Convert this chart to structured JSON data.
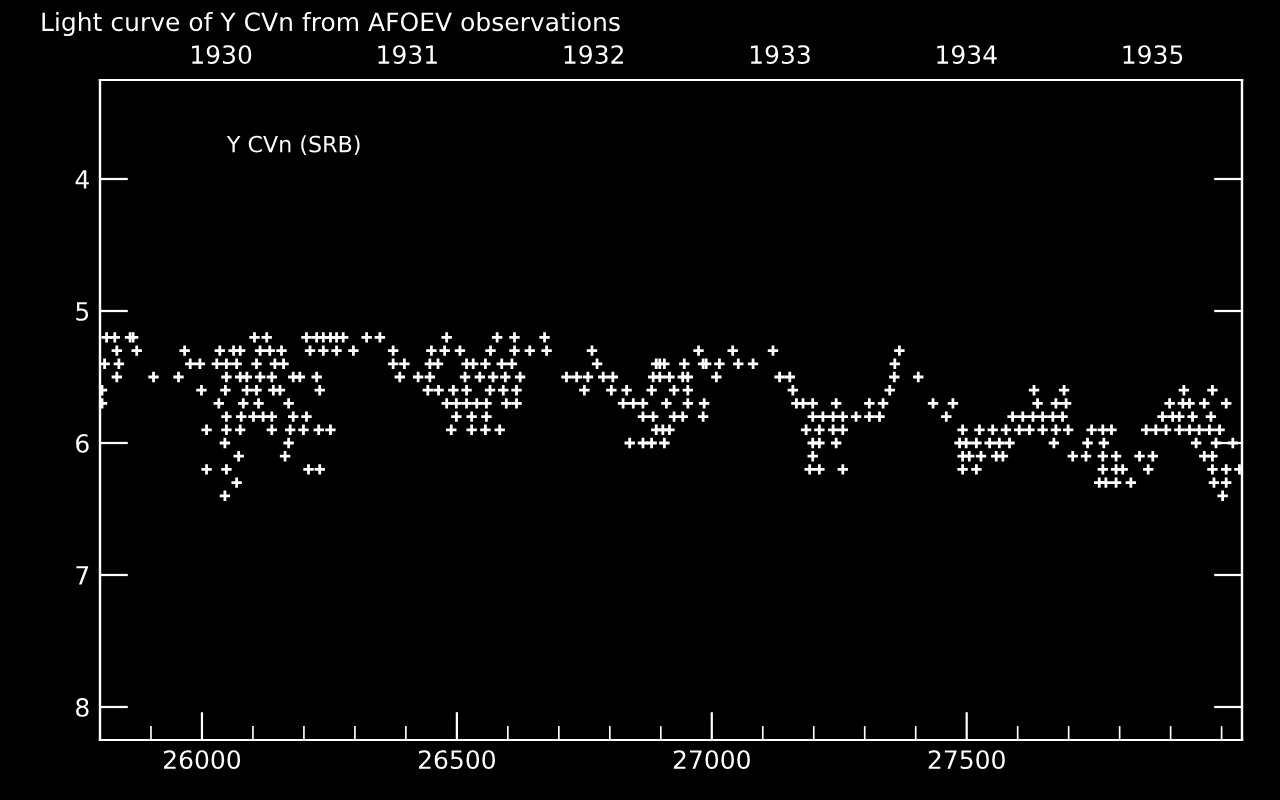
{
  "chart_data": {
    "type": "scatter",
    "title": "Light curve of Y CVn from AFOEV observations",
    "annotations": [
      "Y CVn (SRB)"
    ],
    "marker": "cross",
    "grid": false,
    "xlim": [
      25800,
      28040
    ],
    "ylim": [
      8.25,
      3.25
    ],
    "xticks": [
      {
        "value": 25900,
        "label": null
      },
      26000,
      {
        "value": 26100,
        "label": null
      },
      {
        "value": 26200,
        "label": null
      },
      {
        "value": 26300,
        "label": null
      },
      {
        "value": 26400,
        "label": null
      },
      26500,
      {
        "value": 26600,
        "label": null
      },
      {
        "value": 26700,
        "label": null
      },
      {
        "value": 26800,
        "label": null
      },
      {
        "value": 26900,
        "label": null
      },
      27000,
      {
        "value": 27100,
        "label": null
      },
      {
        "value": 27200,
        "label": null
      },
      {
        "value": 27300,
        "label": null
      },
      {
        "value": 27400,
        "label": null
      },
      27500,
      {
        "value": 27600,
        "label": null
      },
      {
        "value": 27700,
        "label": null
      },
      {
        "value": 27800,
        "label": null
      },
      {
        "value": 27900,
        "label": null
      },
      {
        "value": 28000,
        "label": null
      }
    ],
    "yticks": [
      4,
      5,
      6,
      7,
      8
    ],
    "x2lim": [
      1929.35,
      1935.48
    ],
    "x2ticks": [
      1930,
      1931,
      1932,
      1933,
      1934,
      1935
    ],
    "series": [
      {
        "color": "#ffffff",
        "x": [
          25813,
          25829,
          25859,
          25865,
          26103,
          26127,
          26205,
          26225,
          26238,
          26252,
          26264,
          26277,
          26323,
          26349,
          26480,
          26579,
          26613,
          26672,
          25833,
          25872,
          25966,
          26035,
          26062,
          26075,
          26114,
          26133,
          26156,
          26212,
          26238,
          26264,
          26297,
          26375,
          26450,
          26476,
          26506,
          26566,
          26613,
          26643,
          26676,
          26765,
          25809,
          25837,
          25977,
          25996,
          26029,
          26048,
          26068,
          26107,
          26143,
          26160,
          26375,
          26397,
          26447,
          26463,
          26519,
          26532,
          26556,
          26588,
          26608,
          26775,
          26891,
          25833,
          25905,
          25954,
          26048,
          26075,
          26088,
          26114,
          26137,
          26179,
          26192,
          26225,
          26388,
          26424,
          26447,
          26516,
          26545,
          26571,
          26595,
          26624,
          26715,
          26735,
          26757,
          26787,
          26806,
          26885,
          25804,
          25999,
          26046,
          26088,
          26107,
          26140,
          26153,
          26231,
          26443,
          26464,
          26493,
          26519,
          26565,
          26591,
          26617,
          26750,
          26803,
          26833,
          26882,
          25804,
          26033,
          26081,
          26111,
          26170,
          26480,
          26499,
          26519,
          26539,
          26558,
          26597,
          26617,
          26826,
          26846,
          26865,
          26048,
          26077,
          26101,
          26120,
          26137,
          26179,
          26205,
          26499,
          26529,
          26558,
          26865,
          26885,
          26009,
          26048,
          26075,
          26137,
          26173,
          26199,
          26229,
          26252,
          26489,
          26529,
          26556,
          26584,
          26045,
          26170,
          26839,
          26865,
          26882,
          26072,
          26163,
          26009,
          26048,
          26209,
          26231,
          26068,
          26045,
          26974,
          27041,
          27120,
          27368,
          26898,
          26907,
          26946,
          26983,
          26989,
          27015,
          27052,
          27081,
          27359,
          26898,
          26917,
          26943,
          26953,
          27009,
          27133,
          27153,
          27358,
          27405,
          26926,
          26953,
          27159,
          27349,
          27632,
          27691,
          27926,
          27982,
          26911,
          26953,
          26985,
          27166,
          27179,
          27198,
          27244,
          27309,
          27336,
          27434,
          27473,
          27639,
          27675,
          27695,
          27898,
          27924,
          27937,
          27966,
          28009,
          26926,
          26943,
          26983,
          27198,
          27218,
          27238,
          27257,
          27283,
          27309,
          27329,
          27460,
          27590,
          27610,
          27630,
          27649,
          27669,
          27688,
          27884,
          27904,
          27917,
          27943,
          27979,
          26891,
          26904,
          26917,
          27185,
          27211,
          27238,
          27257,
          27492,
          27525,
          27551,
          27577,
          27603,
          27623,
          27649,
          27675,
          27699,
          27745,
          27767,
          27784,
          27852,
          27871,
          27891,
          27917,
          27937,
          27956,
          27976,
          27996,
          26907,
          27198,
          27211,
          27244,
          27486,
          27499,
          27519,
          27545,
          27564,
          27584,
          27671,
          27737,
          27769,
          27950,
          27989,
          28022,
          27198,
          27492,
          27505,
          27528,
          27558,
          27571,
          27708,
          27734,
          27767,
          27793,
          27839,
          27865,
          27966,
          27982,
          27192,
          27211,
          27257,
          27492,
          27519,
          27767,
          27793,
          27806,
          27856,
          27982,
          28009,
          28035,
          27760,
          27773,
          27793,
          27822,
          27985,
          28009,
          28002
        ],
        "values": [
          5.2,
          5.2,
          5.2,
          5.2,
          5.2,
          5.2,
          5.2,
          5.2,
          5.2,
          5.2,
          5.2,
          5.2,
          5.2,
          5.2,
          5.2,
          5.2,
          5.2,
          5.2,
          5.3,
          5.3,
          5.3,
          5.3,
          5.3,
          5.3,
          5.3,
          5.3,
          5.3,
          5.3,
          5.3,
          5.3,
          5.3,
          5.3,
          5.3,
          5.3,
          5.3,
          5.3,
          5.3,
          5.3,
          5.3,
          5.3,
          5.4,
          5.4,
          5.4,
          5.4,
          5.4,
          5.4,
          5.4,
          5.4,
          5.4,
          5.4,
          5.4,
          5.4,
          5.4,
          5.4,
          5.4,
          5.4,
          5.4,
          5.4,
          5.4,
          5.4,
          5.4,
          5.5,
          5.5,
          5.5,
          5.5,
          5.5,
          5.5,
          5.5,
          5.5,
          5.5,
          5.5,
          5.5,
          5.5,
          5.5,
          5.5,
          5.5,
          5.5,
          5.5,
          5.5,
          5.5,
          5.5,
          5.5,
          5.5,
          5.5,
          5.5,
          5.5,
          5.6,
          5.6,
          5.6,
          5.6,
          5.6,
          5.6,
          5.6,
          5.6,
          5.6,
          5.6,
          5.6,
          5.6,
          5.6,
          5.6,
          5.6,
          5.6,
          5.6,
          5.6,
          5.6,
          5.7,
          5.7,
          5.7,
          5.7,
          5.7,
          5.7,
          5.7,
          5.7,
          5.7,
          5.7,
          5.7,
          5.7,
          5.7,
          5.7,
          5.7,
          5.8,
          5.8,
          5.8,
          5.8,
          5.8,
          5.8,
          5.8,
          5.8,
          5.8,
          5.8,
          5.8,
          5.8,
          5.9,
          5.9,
          5.9,
          5.9,
          5.9,
          5.9,
          5.9,
          5.9,
          5.9,
          5.9,
          5.9,
          5.9,
          6.0,
          6.0,
          6.0,
          6.0,
          6.0,
          6.1,
          6.1,
          6.2,
          6.2,
          6.2,
          6.2,
          6.3,
          6.4,
          5.3,
          5.3,
          5.3,
          5.3,
          5.4,
          5.4,
          5.4,
          5.4,
          5.4,
          5.4,
          5.4,
          5.4,
          5.4,
          5.5,
          5.5,
          5.5,
          5.5,
          5.5,
          5.5,
          5.5,
          5.5,
          5.5,
          5.6,
          5.6,
          5.6,
          5.6,
          5.6,
          5.6,
          5.6,
          5.6,
          5.7,
          5.7,
          5.7,
          5.7,
          5.7,
          5.7,
          5.7,
          5.7,
          5.7,
          5.7,
          5.7,
          5.7,
          5.7,
          5.7,
          5.7,
          5.7,
          5.7,
          5.7,
          5.7,
          5.8,
          5.8,
          5.8,
          5.8,
          5.8,
          5.8,
          5.8,
          5.8,
          5.8,
          5.8,
          5.8,
          5.8,
          5.8,
          5.8,
          5.8,
          5.8,
          5.8,
          5.8,
          5.8,
          5.8,
          5.8,
          5.8,
          5.9,
          5.9,
          5.9,
          5.9,
          5.9,
          5.9,
          5.9,
          5.9,
          5.9,
          5.9,
          5.9,
          5.9,
          5.9,
          5.9,
          5.9,
          5.9,
          5.9,
          5.9,
          5.9,
          5.9,
          5.9,
          5.9,
          5.9,
          5.9,
          5.9,
          5.9,
          5.9,
          6.0,
          6.0,
          6.0,
          6.0,
          6.0,
          6.0,
          6.0,
          6.0,
          6.0,
          6.0,
          6.0,
          6.0,
          6.0,
          6.0,
          6.0,
          6.0,
          6.1,
          6.1,
          6.1,
          6.1,
          6.1,
          6.1,
          6.1,
          6.1,
          6.1,
          6.1,
          6.1,
          6.1,
          6.1,
          6.1,
          6.2,
          6.2,
          6.2,
          6.2,
          6.2,
          6.2,
          6.2,
          6.2,
          6.2,
          6.2,
          6.2,
          6.2,
          6.3,
          6.3,
          6.3,
          6.3,
          6.3,
          6.3,
          6.4
        ]
      }
    ]
  }
}
